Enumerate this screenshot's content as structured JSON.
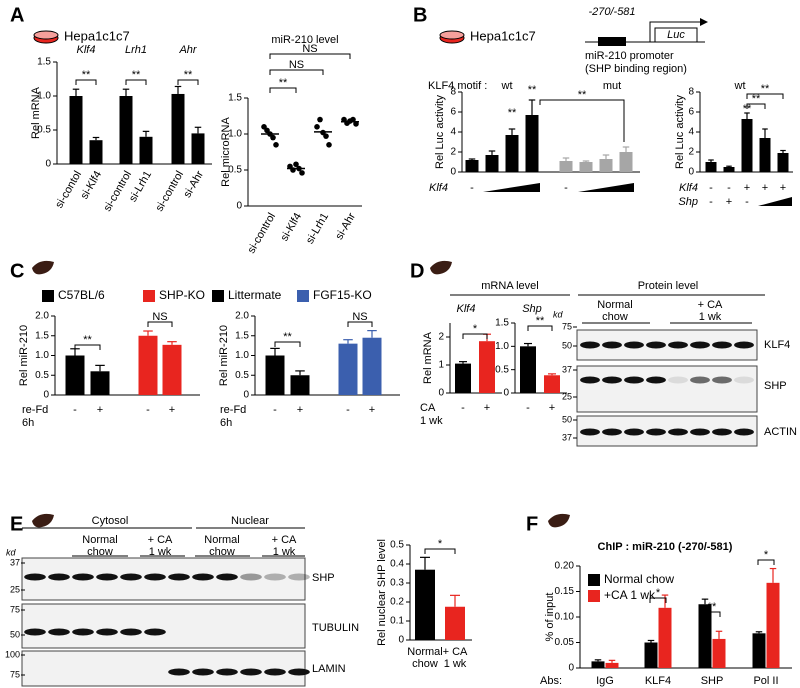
{
  "panel_labels": [
    "A",
    "B",
    "C",
    "D",
    "E",
    "F"
  ],
  "cell_lines": [
    "Hepa1c1c7",
    "Hepa1c1c7"
  ],
  "promoter": {
    "region": "-270/-581",
    "reporter": "Luc",
    "name": "miR-210 promoter",
    "note": "(SHP binding region)"
  },
  "mrna_title": "mRNA level",
  "blots": [
    {
      "title": "Protein level",
      "groups": [
        [
          "Normal",
          "chow"
        ],
        [
          "+ CA",
          "1 wk"
        ]
      ],
      "kd_label": "kd",
      "markers": [
        75,
        50,
        37,
        25,
        50,
        37
      ],
      "proteins": [
        "KLF4",
        "SHP",
        "ACTIN"
      ]
    },
    {
      "fractions": [
        "Cytosol",
        "Nuclear"
      ],
      "groups": [
        [
          "Normal",
          "chow"
        ],
        [
          "+ CA",
          "1 wk"
        ],
        [
          "Normal",
          "chow"
        ],
        [
          "+ CA",
          "1 wk"
        ]
      ],
      "kd_label": "kd",
      "markers": [
        37,
        25,
        75,
        50,
        100,
        75
      ],
      "proteins": [
        "SHP",
        "TUBULIN",
        "LAMIN"
      ]
    }
  ],
  "chart_data": [
    {
      "type": "bar",
      "ylabel": "Rel mRNA",
      "ylim": [
        0,
        1.5
      ],
      "yticks": [
        0,
        0.5,
        {
          "value": 1,
          "label": "1.0"
        },
        1.5
      ],
      "categories": [
        "si-contol",
        "si-Klf4",
        "si-control",
        "si-Lrh1",
        "si-control",
        "si-Ahr"
      ],
      "group_labels": [
        "Klf4",
        "Lrh1",
        "Ahr"
      ],
      "series": [
        {
          "color": "#000000",
          "values": [
            1.0,
            0.35,
            1.0,
            0.4,
            1.03,
            0.45
          ],
          "errors": [
            0.1,
            0.04,
            0.1,
            0.08,
            0.11,
            0.09
          ]
        }
      ],
      "annotations": [
        "**",
        "**",
        "**"
      ]
    },
    {
      "type": "dot",
      "title": "miR-210 level",
      "ylabel": "Rel microRNA",
      "ylim": [
        0,
        1.5
      ],
      "yticks": [
        0,
        0.5,
        {
          "value": 1,
          "label": "1.0"
        },
        1.5
      ],
      "categories": [
        "si-control",
        "si-Klf4",
        "si-Lrh1",
        "si-Ahr"
      ],
      "color": "#000000",
      "values": [
        [
          1.1,
          1.05,
          1.0,
          0.95,
          0.85
        ],
        [
          0.55,
          0.5,
          0.58,
          0.52,
          0.46
        ],
        [
          1.1,
          1.2,
          1.02,
          0.97,
          0.85
        ],
        [
          1.2,
          1.15,
          1.18,
          1.2,
          1.14
        ]
      ],
      "means": [
        1.0,
        0.52,
        1.03,
        1.17
      ],
      "annotations": [
        "NS",
        "NS",
        "**"
      ]
    },
    {
      "type": "bar",
      "motif_label": "KLF4 motif :",
      "group_labels": [
        "wt",
        "mut"
      ],
      "ylabel": "Rel Luc activity",
      "ylim": [
        0,
        8
      ],
      "yticks": [
        0,
        2,
        4,
        6,
        8
      ],
      "series": [
        {
          "color": "#000000",
          "values": [
            1.2,
            1.7,
            3.7,
            5.7,
            null,
            null,
            null,
            null
          ],
          "errors": [
            0.1,
            0.4,
            0.6,
            1.5,
            null,
            null,
            null,
            null
          ]
        },
        {
          "color": "#a6a6a6",
          "values": [
            null,
            null,
            null,
            null,
            1.1,
            1.0,
            1.3,
            2.0
          ],
          "errors": [
            null,
            null,
            null,
            null,
            0.3,
            0.1,
            0.4,
            0.5
          ]
        }
      ],
      "rows": [
        {
          "label": "Klf4",
          "values": [
            "-",
            null,
            null,
            null,
            "-",
            null,
            null,
            null
          ]
        }
      ],
      "annotations": [
        "**",
        "**",
        "**"
      ]
    },
    {
      "type": "bar",
      "group_labels": [
        "wt"
      ],
      "ylabel": "Rel Luc activity",
      "ylim": [
        0,
        8
      ],
      "yticks": [
        0,
        2,
        4,
        6,
        8
      ],
      "series": [
        {
          "color": "#000000",
          "values": [
            1.0,
            0.5,
            5.3,
            3.4,
            1.9
          ],
          "errors": [
            0.2,
            0.08,
            0.6,
            0.9,
            0.25
          ]
        }
      ],
      "rows": [
        {
          "label": "Klf4",
          "values": [
            "-",
            "-",
            "+",
            "+",
            "+"
          ]
        },
        {
          "label": "Shp",
          "values": [
            "-",
            "+",
            "-",
            null,
            null
          ]
        }
      ],
      "annotations": [
        "**",
        "**",
        "**"
      ]
    },
    {
      "type": "bar",
      "ylabel": "Rel miR-210",
      "ylim": [
        0,
        2
      ],
      "yticks": [
        0,
        0.5,
        {
          "value": 1,
          "label": "1.0"
        },
        1.5,
        {
          "value": 2,
          "label": "2.0"
        }
      ],
      "series": [
        {
          "name": "C57BL/6",
          "color": "#000000",
          "values": [
            1.0,
            0.6,
            null,
            null
          ],
          "errors": [
            0.17,
            0.15,
            null,
            null
          ]
        },
        {
          "name": "SHP-KO",
          "color": "#e8251f",
          "values": [
            null,
            null,
            1.5,
            1.27
          ],
          "errors": [
            null,
            null,
            0.12,
            0.08
          ]
        }
      ],
      "rows": [
        {
          "label": [
            "re-Fd",
            "6h"
          ],
          "values": [
            "-",
            "+",
            "-",
            "+"
          ]
        }
      ],
      "annotations": [
        "**",
        "NS"
      ]
    },
    {
      "type": "bar",
      "ylabel": "Rel miR-210",
      "ylim": [
        0,
        2
      ],
      "yticks": [
        0,
        0.5,
        {
          "value": 1,
          "label": "1.0"
        },
        1.5,
        {
          "value": 2,
          "label": "2.0"
        }
      ],
      "series": [
        {
          "name": "Littermate",
          "color": "#000000",
          "values": [
            1.0,
            0.5,
            null,
            null
          ],
          "errors": [
            0.18,
            0.11,
            null,
            null
          ]
        },
        {
          "name": "FGF15-KO",
          "color": "#3b5fae",
          "values": [
            null,
            null,
            1.3,
            1.45
          ],
          "errors": [
            null,
            null,
            0.1,
            0.18
          ]
        }
      ],
      "rows": [
        {
          "label": [
            "re-Fd",
            "6h"
          ],
          "values": [
            "-",
            "+",
            "-",
            "+"
          ]
        }
      ],
      "annotations": [
        "**",
        "NS"
      ]
    },
    {
      "type": "bar",
      "title": "Klf4",
      "ylabel": "Rel mRNA",
      "ylim": [
        0,
        2.5
      ],
      "yticks": [
        0,
        1,
        2
      ],
      "series": [
        {
          "color": "#000000",
          "values": [
            1.05,
            null
          ],
          "errors": [
            0.07,
            null
          ]
        },
        {
          "color": "#e8251f",
          "values": [
            null,
            1.85
          ],
          "errors": [
            null,
            0.25
          ]
        }
      ],
      "rows": [
        {
          "label": [
            "CA",
            "1 wk"
          ],
          "values": [
            "-",
            "+"
          ]
        }
      ],
      "annotations": [
        "*"
      ]
    },
    {
      "type": "bar",
      "title": "Shp",
      "ylim": [
        0,
        1.5
      ],
      "yticks": [
        0,
        0.5,
        {
          "value": 1,
          "label": "1.0"
        },
        1.5
      ],
      "series": [
        {
          "color": "#000000",
          "values": [
            1.0,
            null
          ],
          "errors": [
            0.06,
            null
          ]
        },
        {
          "color": "#e8251f",
          "values": [
            null,
            0.38
          ],
          "errors": [
            null,
            0.03
          ]
        }
      ],
      "rows": [
        {
          "values": [
            "-",
            "+"
          ]
        }
      ],
      "annotations": [
        "**"
      ]
    },
    {
      "type": "bar",
      "ylabel": "Rel nuclear SHP level",
      "ylim": [
        0,
        0.5
      ],
      "yticks": [
        0,
        0.1,
        0.2,
        0.3,
        0.4,
        0.5
      ],
      "categories": [
        [
          "Normal",
          "chow"
        ],
        [
          "+ CA",
          "1 wk"
        ]
      ],
      "series": [
        {
          "color": "#000000",
          "values": [
            0.37,
            null
          ],
          "errors": [
            0.065,
            null
          ]
        },
        {
          "color": "#e8251f",
          "values": [
            null,
            0.175
          ],
          "errors": [
            null,
            0.06
          ]
        }
      ],
      "annotations": [
        "*"
      ]
    },
    {
      "type": "bar",
      "grouped": true,
      "title": "ChIP : miR-210 (-270/-581)",
      "ylabel": "% of input",
      "ylim": [
        0,
        0.2
      ],
      "yticks": [
        0,
        0.05,
        {
          "value": 0.1,
          "label": "0.10"
        },
        0.15,
        {
          "value": 0.2,
          "label": "0.20"
        }
      ],
      "x_label": "Abs:",
      "categories": [
        "IgG",
        "KLF4",
        "SHP",
        "Pol II"
      ],
      "series": [
        {
          "name": "Normal chow",
          "color": "#000000",
          "values": [
            0.013,
            0.05,
            0.125,
            0.068
          ],
          "errors": [
            0.003,
            0.004,
            0.01,
            0.003
          ]
        },
        {
          "name": "+CA 1 wk",
          "color": "#e8251f",
          "values": [
            0.01,
            0.118,
            0.057,
            0.167
          ],
          "errors": [
            0.005,
            0.025,
            0.015,
            0.028
          ]
        }
      ],
      "annotations": [
        "*",
        "**",
        "*"
      ]
    }
  ]
}
